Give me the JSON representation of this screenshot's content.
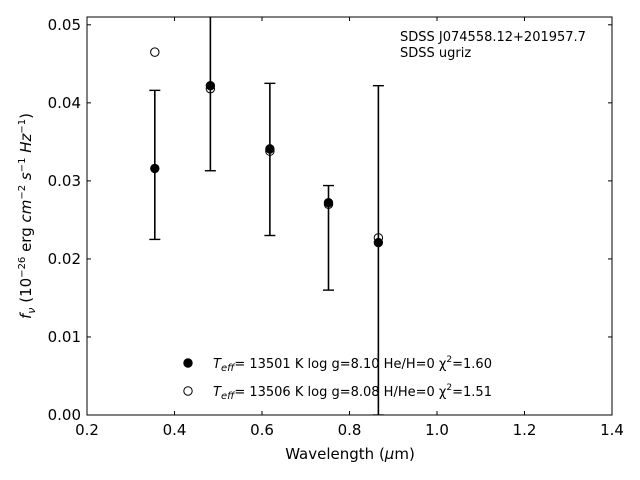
{
  "chart_data": {
    "type": "scatter",
    "xlabel": "Wavelength (μm)",
    "ylabel": "f_ν (10^-26 erg cm^-2 s^-1 Hz^-1)",
    "xlim": [
      0.2,
      1.4
    ],
    "ylim": [
      0.0,
      0.051
    ],
    "x_ticks": [
      0.2,
      0.4,
      0.6,
      0.8,
      1.0,
      1.2,
      1.4
    ],
    "y_ticks": [
      0.0,
      0.01,
      0.02,
      0.03,
      0.04,
      0.05
    ],
    "x_tick_labels": [
      "0.2",
      "0.4",
      "0.6",
      "0.8",
      "1.0",
      "1.2",
      "1.4"
    ],
    "y_tick_labels": [
      "0.00",
      "0.01",
      "0.02",
      "0.03",
      "0.04",
      "0.05"
    ],
    "grid": false,
    "legend_placement": "bottom-center",
    "annotations": [
      "SDSS J074558.12+201957.7",
      "SDSS ugriz"
    ],
    "observed": {
      "x": [
        0.355,
        0.482,
        0.618,
        0.752,
        0.866
      ],
      "y_low": [
        0.0225,
        0.0313,
        0.023,
        0.016,
        0.0
      ],
      "y_high": [
        0.0416,
        0.052,
        0.0425,
        0.0294,
        0.0422
      ]
    },
    "series": [
      {
        "legend": "T_eff= 13501 K  log g=8.10  He/H=0  χ²=1.60",
        "marker": "filled-circle",
        "x": [
          0.355,
          0.482,
          0.618,
          0.752,
          0.866
        ],
        "y": [
          0.0316,
          0.0422,
          0.0341,
          0.0272,
          0.0221
        ]
      },
      {
        "legend": "T_eff= 13506 K  log g=8.08  H/He=0  χ²=1.51",
        "marker": "open-circle",
        "x": [
          0.355,
          0.482,
          0.618,
          0.752,
          0.866
        ],
        "y": [
          0.0465,
          0.0418,
          0.0338,
          0.027,
          0.0227
        ]
      }
    ]
  },
  "labels": {
    "ylabel_main": "f",
    "ylabel_sub": "ν",
    "ylabel_open": " (10",
    "ylabel_exp1": "−26",
    "ylabel_erg": " erg ",
    "ylabel_cm": "cm",
    "ylabel_exp2": "−2",
    "ylabel_s": " s",
    "ylabel_exp3": "−1",
    "ylabel_hz": " Hz",
    "ylabel_exp4": "−1",
    "ylabel_close": ")",
    "xlabel_pre": "Wavelength (",
    "xlabel_mu": "μ",
    "xlabel_post": "m)",
    "legend1_T": "T",
    "legend1_eff": "eff",
    "legend1_rest": "= 13501 K  log g=8.10  He/H=0  χ",
    "legend1_sup": "2",
    "legend1_end": "=1.60",
    "legend2_T": "T",
    "legend2_eff": "eff",
    "legend2_rest": "= 13506 K  log g=8.08  H/He=0  χ",
    "legend2_sup": "2",
    "legend2_end": "=1.51"
  }
}
